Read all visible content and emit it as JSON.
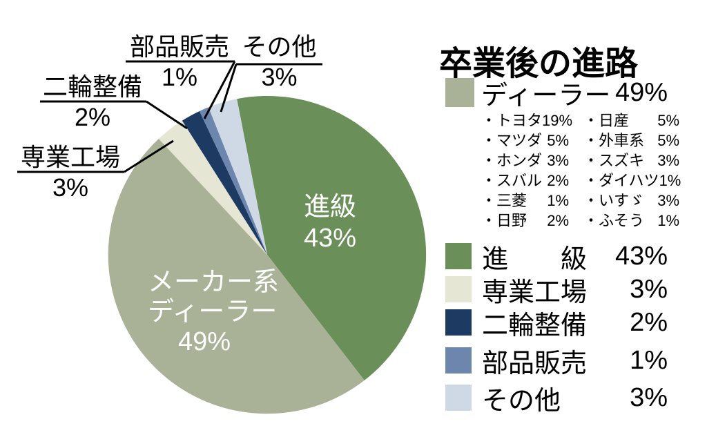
{
  "title": "卒業後の進路",
  "colors": {
    "green": "#6B8F58",
    "sage": "#A9B296",
    "cream": "#E6E6D4",
    "navy": "#1D3A63",
    "blue_gray": "#6D86AD",
    "light_blue": "#CFD9E6",
    "background": "#FFFFFF",
    "text": "#000000",
    "pie_label_text": "#FFFFFF"
  },
  "chart_data": {
    "type": "pie",
    "title": "卒業後の進路",
    "unit": "%",
    "start_angle_deg": -11,
    "direction": "clockwise",
    "legend_position": "right",
    "slices": [
      {
        "key": "shinkyuu",
        "label": "進級",
        "value": 43,
        "color_key": "green"
      },
      {
        "key": "maker_dealer",
        "label": "メーカー系ディーラー",
        "value": 49,
        "color_key": "sage"
      },
      {
        "key": "senmon_kojo",
        "label": "専業工場",
        "value": 3,
        "color_key": "cream"
      },
      {
        "key": "nirin_seibi",
        "label": "二輪整備",
        "value": 2,
        "color_key": "navy"
      },
      {
        "key": "buhin_hanbai",
        "label": "部品販売",
        "value": 1,
        "color_key": "blue_gray"
      },
      {
        "key": "sonota",
        "label": "その他",
        "value": 3,
        "color_key": "light_blue"
      }
    ],
    "dealer_breakdown": {
      "label": "ディーラー",
      "value": 49,
      "items": [
        {
          "name": "トヨタ",
          "value": 19
        },
        {
          "name": "マツダ",
          "value": 5
        },
        {
          "name": "ホンダ",
          "value": 3
        },
        {
          "name": "スバル",
          "value": 2
        },
        {
          "name": "三菱",
          "value": 1
        },
        {
          "name": "日野",
          "value": 2
        },
        {
          "name": "日産",
          "value": 5
        },
        {
          "name": "外車系",
          "value": 5
        },
        {
          "name": "スズキ",
          "value": 3
        },
        {
          "name": "ダイハツ",
          "value": 1
        },
        {
          "name": "いすゞ",
          "value": 3
        },
        {
          "name": "ふそう",
          "value": 1
        }
      ]
    }
  },
  "pie_labels": {
    "shinkyuu": {
      "line1": "進級",
      "line2": "43%"
    },
    "maker_dealer": {
      "line1": "メーカー系",
      "line2": "ディーラー",
      "line3": "49%"
    }
  },
  "callouts": {
    "buhin_hanbai": {
      "label": "部品販売",
      "pct": "1%"
    },
    "sonota": {
      "label": "その他",
      "pct": "3%"
    },
    "nirin_seibi": {
      "label": "二輪整備",
      "pct": "2%"
    },
    "senmon_kojo": {
      "label": "専業工場",
      "pct": "3%"
    }
  },
  "legend": {
    "title": "卒業後の進路",
    "dealer_row": {
      "label": "ディーラー",
      "pct": "49%",
      "color_key": "sage"
    },
    "breakdown_col1": [
      {
        "name": "・トヨタ",
        "pct": "19%"
      },
      {
        "name": "・マツダ",
        "pct": "5%"
      },
      {
        "name": "・ホンダ",
        "pct": "3%"
      },
      {
        "name": "・スバル",
        "pct": "2%"
      },
      {
        "name": "・三菱",
        "pct": "1%"
      },
      {
        "name": "・日野",
        "pct": "2%"
      }
    ],
    "breakdown_col2": [
      {
        "name": "・日産",
        "pct": "5%"
      },
      {
        "name": "・外車系",
        "pct": "5%"
      },
      {
        "name": "・スズキ",
        "pct": "3%"
      },
      {
        "name": "・ダイハツ",
        "pct": "1%"
      },
      {
        "name": "・いすゞ",
        "pct": "3%"
      },
      {
        "name": "・ふそう",
        "pct": "1%"
      }
    ],
    "rows": [
      {
        "label": "進　　級",
        "pct": "43%",
        "color_key": "green"
      },
      {
        "label": "専業工場",
        "pct": "3%",
        "color_key": "cream"
      },
      {
        "label": "二輪整備",
        "pct": "2%",
        "color_key": "navy"
      },
      {
        "label": "部品販売",
        "pct": "1%",
        "color_key": "blue_gray"
      },
      {
        "label": "その他",
        "pct": "3%",
        "color_key": "light_blue"
      }
    ]
  }
}
